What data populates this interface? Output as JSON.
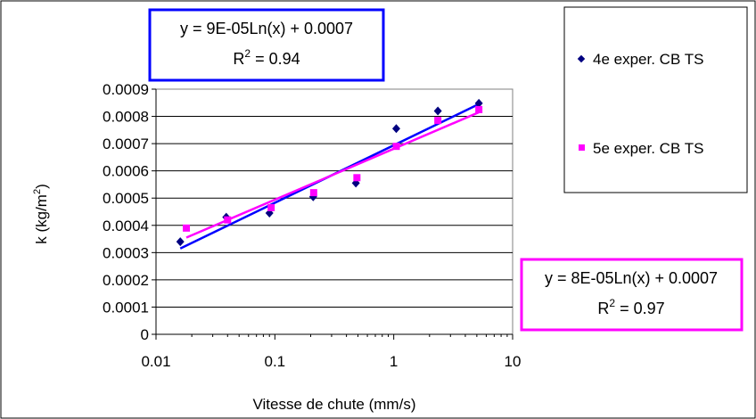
{
  "chart_data": {
    "type": "scatter",
    "xscale": "log",
    "xlim": [
      0.01,
      10
    ],
    "ylim": [
      0,
      0.0009
    ],
    "xlabel": "Vitesse de chute (mm/s)",
    "ylabel_main": "k (kg/m",
    "ylabel_sup": "2",
    "ylabel_end": ")",
    "x_ticks": [
      "0.01",
      "0.1",
      "1",
      "10"
    ],
    "y_ticks": [
      "0",
      "0.0001",
      "0.0002",
      "0.0003",
      "0.0004",
      "0.0005",
      "0.0006",
      "0.0007",
      "0.0008",
      "0.0009"
    ],
    "gridlines": "horizontal",
    "legend_position": "right",
    "series": [
      {
        "name": "4e exper. CB TS",
        "color": "#000080",
        "marker": "diamond",
        "x": [
          0.016,
          0.039,
          0.09,
          0.21,
          0.48,
          1.05,
          2.35,
          5.2
        ],
        "y": [
          0.00034,
          0.00043,
          0.000445,
          0.000505,
          0.000555,
          0.000755,
          0.00082,
          0.000848
        ],
        "trend": {
          "type": "log",
          "color": "#0000FF",
          "eq_main": "y = 9E-05Ln(x) + 0.0007",
          "r2_label": "R",
          "r2_sup": "2",
          "r2_value": " = 0.94",
          "from": [
            0.016,
            0.000315
          ],
          "to": [
            5.2,
            0.000845
          ]
        }
      },
      {
        "name": "5e exper. CB TS",
        "color": "#FF00FF",
        "marker": "square",
        "x": [
          0.018,
          0.04,
          0.093,
          0.212,
          0.49,
          1.05,
          2.35,
          5.2
        ],
        "y": [
          0.00039,
          0.00042,
          0.000465,
          0.00052,
          0.000575,
          0.00069,
          0.000785,
          0.000825
        ],
        "trend": {
          "type": "log",
          "color": "#FF00FF",
          "eq_main": "y = 8E-05Ln(x) + 0.0007",
          "r2_label": "R",
          "r2_sup": "2",
          "r2_value": " = 0.97",
          "from": [
            0.018,
            0.000355
          ],
          "to": [
            5.2,
            0.000815
          ]
        }
      }
    ]
  }
}
